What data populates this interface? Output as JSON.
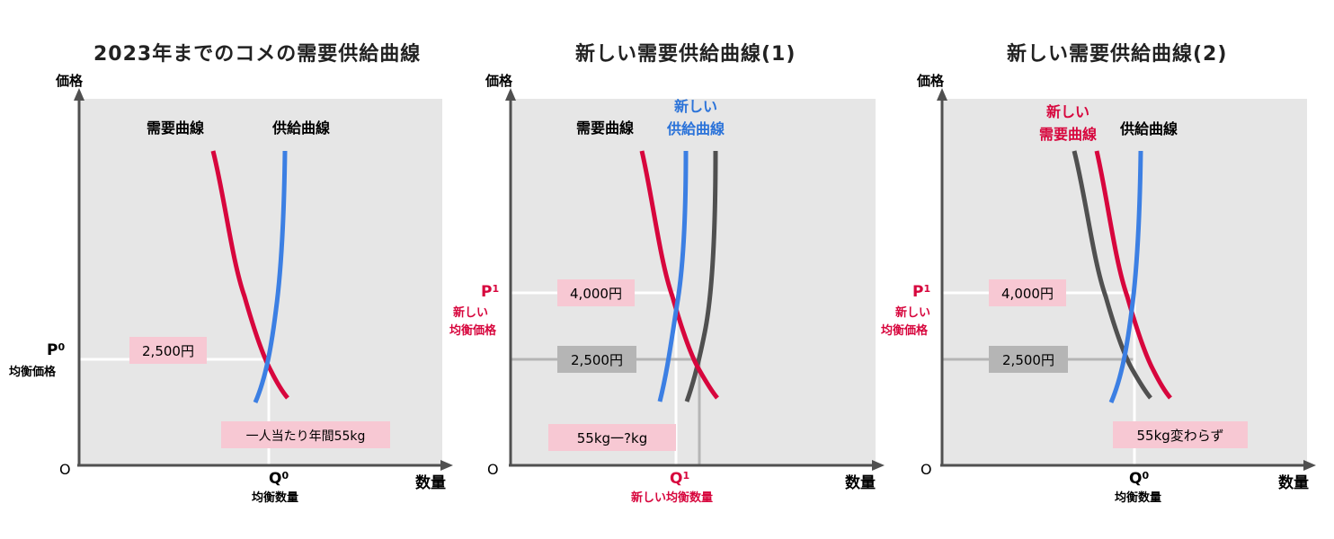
{
  "colors": {
    "demand": "#d7063d",
    "supply": "#3c7fe3",
    "old": "#505050",
    "plot_bg": "#e6e6e6",
    "pink_box": "#f7c8d3",
    "gray_box": "#b5b5b5",
    "accent_text": "#d7063d",
    "blue_text": "#2b73d9"
  },
  "panels": [
    {
      "title": "2023年までのコメの需要供給曲線",
      "y_axis": "価格",
      "x_axis": "数量",
      "origin": "O",
      "curve_labels": [
        "需要曲線",
        "供給曲線"
      ],
      "p_label": "P",
      "p_sub": "0",
      "p_desc": [
        "均衡価格"
      ],
      "q_label": "Q",
      "q_sub": "0",
      "q_desc": "均衡数量",
      "price_box": "2,500円",
      "qty_box": "一人当たり年間55kg"
    },
    {
      "title": "新しい需要供給曲線(1)",
      "y_axis": "価格",
      "x_axis": "数量",
      "origin": "O",
      "curve_labels": [
        "需要曲線"
      ],
      "new_label": [
        "新しい",
        "供給曲線"
      ],
      "p_label": "P",
      "p_sub": "1",
      "p_desc": [
        "新しい",
        "均衡価格"
      ],
      "q_label": "Q",
      "q_sub": "1",
      "q_desc": "新しい均衡数量",
      "price_box_new": "4,000円",
      "price_box_old": "2,500円",
      "qty_box": "55kg一?kg"
    },
    {
      "title": "新しい需要供給曲線(2)",
      "y_axis": "価格",
      "x_axis": "数量",
      "origin": "O",
      "curve_labels": [
        "供給曲線"
      ],
      "new_label": [
        "新しい",
        "需要曲線"
      ],
      "p_label": "P",
      "p_sub": "1",
      "p_desc": [
        "新しい",
        "均衡価格"
      ],
      "q_label": "Q",
      "q_sub": "0",
      "q_desc": "均衡数量",
      "price_box_new": "4,000円",
      "price_box_old": "2,500円",
      "qty_box": "55kg変わらず"
    }
  ]
}
